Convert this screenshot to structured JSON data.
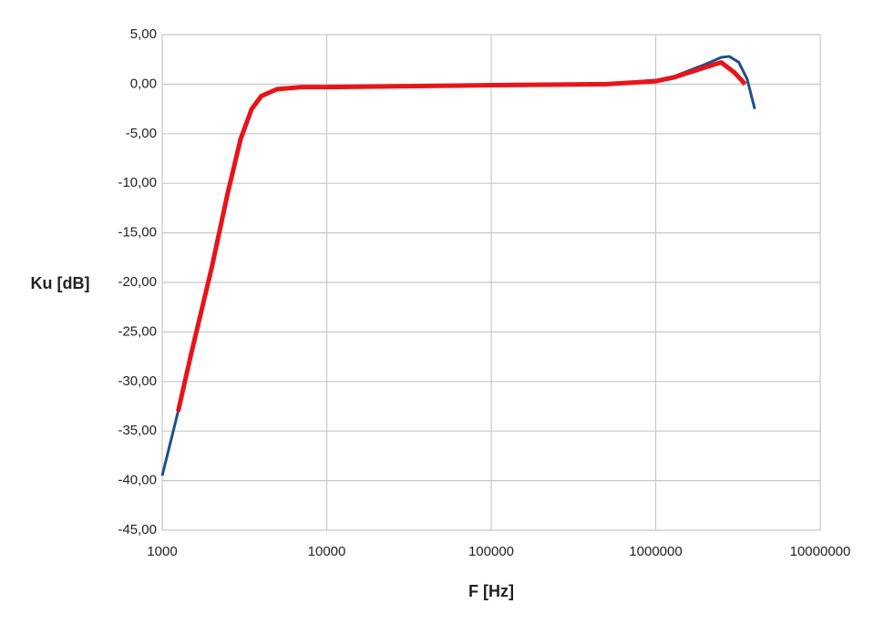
{
  "chart_data": {
    "type": "line",
    "x_label": "F [Hz]",
    "y_label": "Ku [dB]",
    "x_log": true,
    "grid": true,
    "xlim": [
      1000,
      10000000
    ],
    "xticks": [
      1000,
      10000,
      100000,
      1000000,
      10000000
    ],
    "ylim": [
      -45,
      5
    ],
    "yticks": [
      {
        "value": -45,
        "label": "-45,00"
      },
      {
        "value": -40,
        "label": "-40,00"
      },
      {
        "value": -35,
        "label": "-35,00"
      },
      {
        "value": -30,
        "label": "-30,00"
      },
      {
        "value": -25,
        "label": "-25,00"
      },
      {
        "value": -20,
        "label": "-20,00"
      },
      {
        "value": -15,
        "label": "-15,00"
      },
      {
        "value": -10,
        "label": "-10,00"
      },
      {
        "value": -5,
        "label": "-5,00"
      },
      {
        "value": 0,
        "label": "0,00"
      },
      {
        "value": 5,
        "label": "5,00"
      }
    ],
    "series": [
      {
        "color": "#1f4e8c",
        "width": 3,
        "x": [
          1000,
          1250,
          1500,
          2000,
          2500,
          3000,
          3500,
          4000,
          5000,
          7000,
          10000,
          100000,
          500000,
          1000000,
          1300000,
          2000000,
          2500000,
          2800000,
          3200000,
          3600000,
          4000000
        ],
        "values": [
          -39.5,
          -33,
          -27.2,
          -18.5,
          -11,
          -5.5,
          -2.5,
          -1.2,
          -0.5,
          -0.3,
          -0.3,
          -0.1,
          0,
          0.4,
          0.8,
          2.0,
          2.7,
          2.8,
          2.2,
          0.5,
          -2.5
        ]
      },
      {
        "color": "#e8141a",
        "width": 5,
        "x": [
          1250,
          1500,
          2000,
          2500,
          3000,
          3500,
          4000,
          5000,
          7000,
          10000,
          100000,
          500000,
          1000000,
          1300000,
          2000000,
          2500000,
          3000000,
          3500000
        ],
        "values": [
          -33,
          -27.2,
          -18.5,
          -11,
          -5.5,
          -2.5,
          -1.2,
          -0.5,
          -0.3,
          -0.3,
          -0.1,
          0,
          0.3,
          0.7,
          1.7,
          2.2,
          1.2,
          0
        ]
      }
    ]
  }
}
